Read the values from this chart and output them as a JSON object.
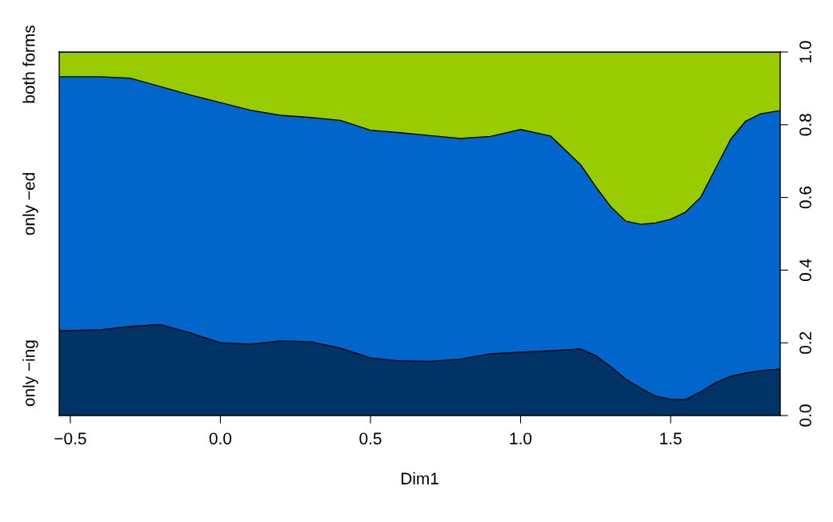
{
  "chart_data": {
    "type": "area",
    "stacked": true,
    "xlabel": "Dim1",
    "x": [
      -0.537,
      -0.4,
      -0.3,
      -0.2,
      -0.1,
      0,
      0.1,
      0.2,
      0.3,
      0.4,
      0.5,
      0.6,
      0.7,
      0.8,
      0.9,
      1.0,
      1.1,
      1.2,
      1.25,
      1.3,
      1.35,
      1.4,
      1.45,
      1.5,
      1.55,
      1.6,
      1.65,
      1.7,
      1.75,
      1.8,
      1.865
    ],
    "series": [
      {
        "name": "only −ing",
        "color": "#003366",
        "values": [
          0.233,
          0.236,
          0.245,
          0.25,
          0.227,
          0.2,
          0.196,
          0.205,
          0.203,
          0.185,
          0.158,
          0.15,
          0.149,
          0.155,
          0.17,
          0.174,
          0.178,
          0.183,
          0.165,
          0.135,
          0.1,
          0.075,
          0.053,
          0.045,
          0.044,
          0.065,
          0.09,
          0.108,
          0.117,
          0.123,
          0.128
        ]
      },
      {
        "name": "only −ed",
        "color": "#0066cc",
        "values": [
          0.699,
          0.696,
          0.683,
          0.655,
          0.655,
          0.661,
          0.644,
          0.621,
          0.617,
          0.627,
          0.627,
          0.628,
          0.621,
          0.607,
          0.598,
          0.613,
          0.591,
          0.507,
          0.465,
          0.44,
          0.435,
          0.451,
          0.477,
          0.495,
          0.516,
          0.535,
          0.59,
          0.652,
          0.693,
          0.707,
          0.711
        ]
      },
      {
        "name": "both forms",
        "color": "#99cc00",
        "values": [
          0.068,
          0.068,
          0.072,
          0.095,
          0.118,
          0.139,
          0.16,
          0.174,
          0.18,
          0.188,
          0.215,
          0.222,
          0.23,
          0.238,
          0.232,
          0.213,
          0.231,
          0.31,
          0.37,
          0.425,
          0.465,
          0.474,
          0.47,
          0.46,
          0.44,
          0.4,
          0.32,
          0.24,
          0.19,
          0.17,
          0.161
        ]
      }
    ],
    "xlim": [
      -0.537,
      1.865
    ],
    "ylim": [
      0,
      1
    ],
    "xticks": [
      {
        "value": -0.5,
        "label": "−0.5"
      },
      {
        "value": 0,
        "label": "0.0"
      },
      {
        "value": 0.5,
        "label": "0.5"
      },
      {
        "value": 1.0,
        "label": "1.0"
      },
      {
        "value": 1.5,
        "label": "1.5"
      }
    ],
    "yticks": [
      {
        "value": 0,
        "label": "0.0"
      },
      {
        "value": 0.2,
        "label": "0.2"
      },
      {
        "value": 0.4,
        "label": "0.4"
      },
      {
        "value": 0.6,
        "label": "0.6"
      },
      {
        "value": 0.8,
        "label": "0.8"
      },
      {
        "value": 1.0,
        "label": "1.0"
      }
    ],
    "grid": false,
    "legend": false
  }
}
